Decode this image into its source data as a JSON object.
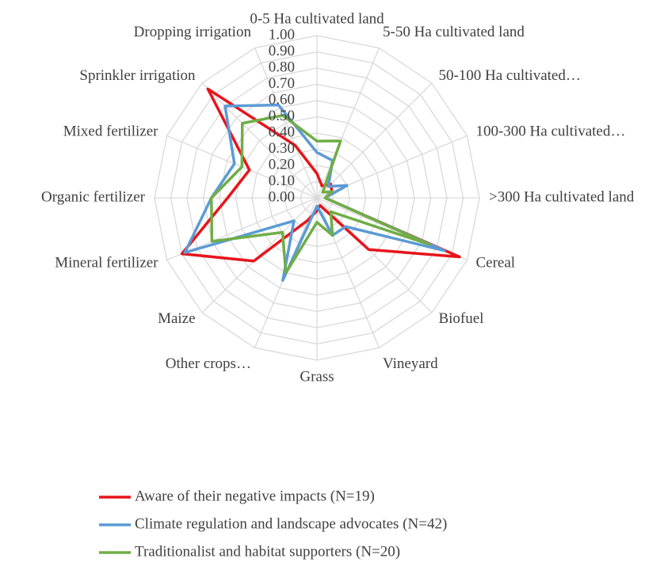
{
  "chart_data": {
    "type": "radar",
    "categories": [
      "0-5 Ha cultivated land",
      "5-50 Ha cultivated land",
      "50-100 Ha cultivated…",
      "100-300 Ha cultivated…",
      ">300 Ha cultivated land",
      "Cereal",
      "Biofuel",
      "Vineyard",
      "Grass",
      "Other crops…",
      "Maize",
      "Mineral fertilizer",
      "Organic fertilizer",
      "Mixed fertilizer",
      "Sprinkler irrigation",
      "Dropping irrigation"
    ],
    "series": [
      {
        "name": "Aware of their negative impacts (N=19)",
        "color": "#e8141b",
        "values": [
          0.15,
          0.08,
          0.12,
          0.1,
          0.05,
          0.95,
          0.45,
          0.05,
          0.08,
          0.15,
          0.55,
          0.9,
          0.55,
          0.45,
          0.95,
          0.35
        ]
      },
      {
        "name": "Climate regulation and landscape advocates (N=42)",
        "color": "#5b9bd5",
        "values": [
          0.28,
          0.25,
          0.1,
          0.2,
          0.05,
          0.85,
          0.25,
          0.25,
          0.05,
          0.55,
          0.2,
          0.88,
          0.65,
          0.55,
          0.8,
          0.62
        ]
      },
      {
        "name": "Traditionalist and habitat supporters (N=20)",
        "color": "#70ad47",
        "values": [
          0.35,
          0.38,
          0.05,
          0.1,
          0.05,
          0.75,
          0.12,
          0.25,
          0.15,
          0.5,
          0.3,
          0.7,
          0.65,
          0.5,
          0.65,
          0.55
        ]
      }
    ],
    "ylim": [
      0,
      1
    ],
    "yticks": [
      {
        "value": 0,
        "label": "0.00"
      },
      {
        "value": 0.1,
        "label": "0.10"
      },
      {
        "value": 0.2,
        "label": "0.20"
      },
      {
        "value": 0.3,
        "label": "0.30"
      },
      {
        "value": 0.4,
        "label": "0.40"
      },
      {
        "value": 0.5,
        "label": "0.50"
      },
      {
        "value": 0.6,
        "label": "0.60"
      },
      {
        "value": 0.7,
        "label": "0.70"
      },
      {
        "value": 0.8,
        "label": "0.80"
      },
      {
        "value": 0.9,
        "label": "0.90"
      },
      {
        "value": 1,
        "label": "1.00"
      }
    ],
    "grid": true,
    "legend": "bottom"
  }
}
